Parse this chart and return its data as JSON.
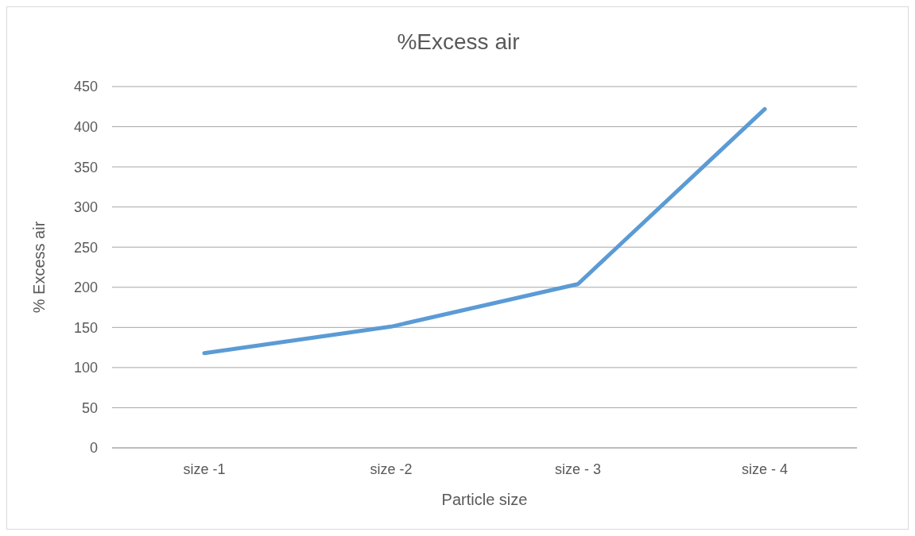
{
  "chart_data": {
    "type": "line",
    "title": "%Excess air",
    "xlabel": "Particle size",
    "ylabel": "% Excess air",
    "categories": [
      "size -1",
      "size -2",
      "size - 3",
      "size - 4"
    ],
    "series": [
      {
        "color": "#5b9bd5",
        "values": [
          118,
          151,
          204,
          422
        ]
      }
    ],
    "ylim": [
      0,
      450
    ],
    "yticks": [
      0,
      50,
      100,
      150,
      200,
      250,
      300,
      350,
      400,
      450
    ],
    "grid": "y",
    "legend": false,
    "marker": "none"
  }
}
